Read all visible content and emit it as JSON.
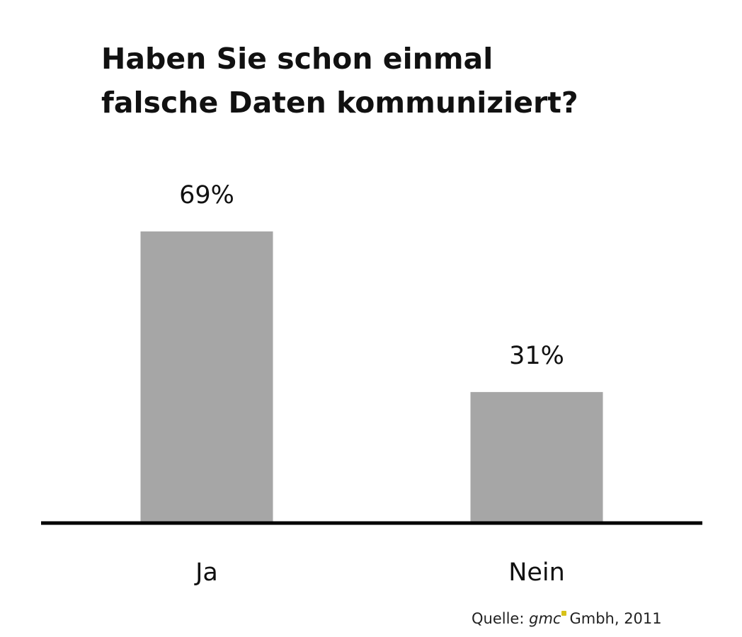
{
  "title_line1": "Haben Sie schon einmal",
  "title_line2": "falsche Daten kommuniziert?",
  "source": {
    "prefix": "Quelle:",
    "brand": "gmc",
    "suffix": "Gmbh, 2011",
    "brand_color": "#d8c21a"
  },
  "colors": {
    "bar": "#a6a6a6",
    "axis": "#000000",
    "text": "#111111"
  },
  "chart_data": {
    "type": "bar",
    "title": "Haben Sie schon einmal falsche Daten kommuniziert?",
    "categories": [
      "Ja",
      "Nein"
    ],
    "values": [
      69,
      31
    ],
    "value_labels": [
      "69%",
      "31%"
    ],
    "ylim": [
      0,
      100
    ],
    "grid": false,
    "legend": "none"
  }
}
